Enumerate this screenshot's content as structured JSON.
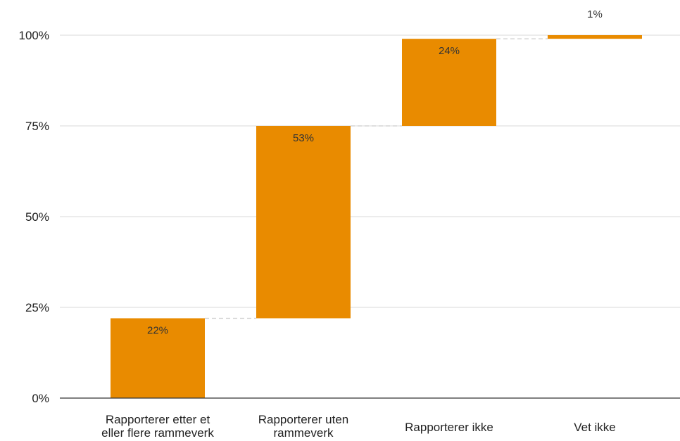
{
  "chart_data": {
    "type": "bar",
    "subtype": "waterfall",
    "title": "",
    "xlabel": "",
    "ylabel": "",
    "categories": [
      [
        "Rapporterer etter et",
        "eller flere rammeverk"
      ],
      [
        "Rapporterer uten",
        "rammeverk"
      ],
      [
        "Rapporterer ikke"
      ],
      [
        "Vet ikke"
      ]
    ],
    "values": [
      22,
      53,
      24,
      1
    ],
    "data_labels": [
      "22%",
      "53%",
      "24%",
      "1%"
    ],
    "y_ticks": [
      "0%",
      "25%",
      "50%",
      "75%",
      "100%"
    ],
    "ylim": [
      0,
      100
    ],
    "grid": true,
    "legend": "none",
    "bar_color": "#E98B00",
    "grid_color": "#D9D9D9",
    "connector_color": "#CCCCCC",
    "axis_color": "#333333"
  }
}
